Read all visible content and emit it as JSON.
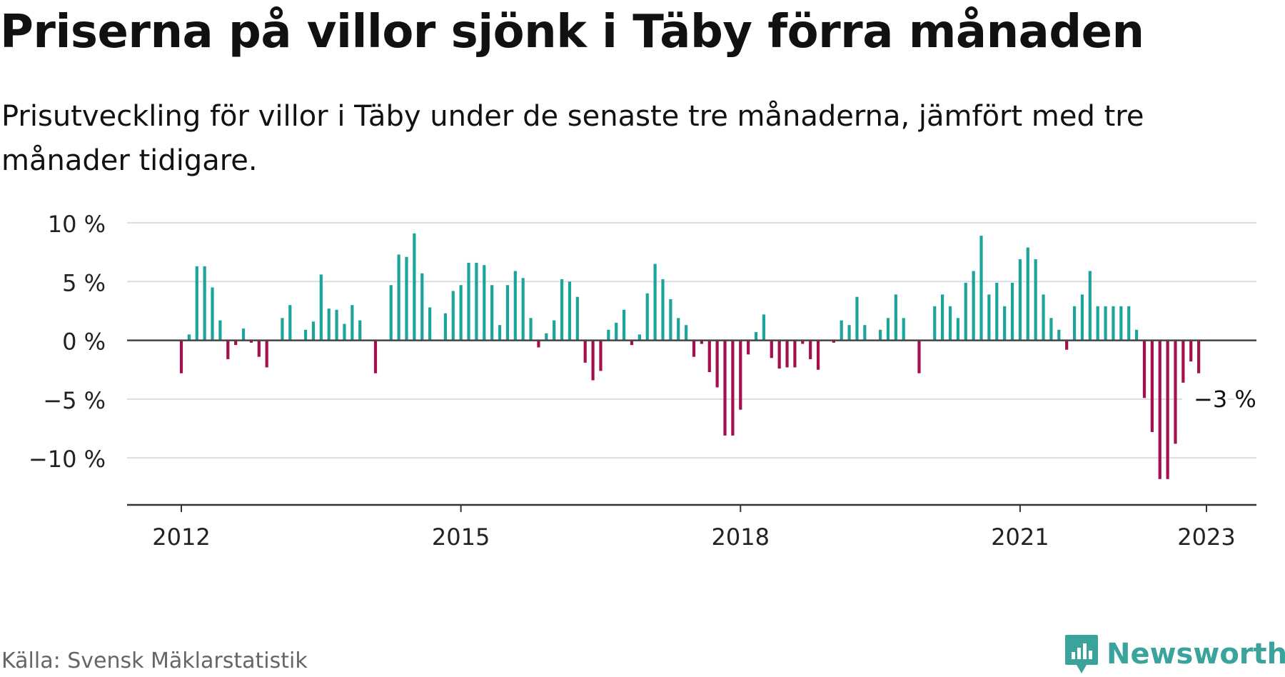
{
  "title": "Priserna på villor sjönk i Täby förra månaden",
  "subtitle": "Prisutveckling för villor i Täby under de senaste tre månaderna, jämfört med tre månader tidigare.",
  "source": "Källa: Svensk Mäklarstatistik",
  "brand": {
    "name": "Newsworthy",
    "icon": "newsworthy-logo-icon",
    "color": "#3aa39b"
  },
  "colors": {
    "positive": "#1aa49a",
    "negative": "#a50f4e",
    "gridline": "#dddddd",
    "axis": "#444444"
  },
  "chart_data": {
    "type": "bar",
    "title": "Priserna på villor sjönk i Täby förra månaden",
    "xlabel": "",
    "ylabel": "",
    "unit": "%",
    "ylim": [
      -14,
      10
    ],
    "yticks": [
      10,
      5,
      0,
      -5,
      -10
    ],
    "ytick_labels": [
      "10 %",
      "5 %",
      "0 %",
      "−5 %",
      "−10 %"
    ],
    "xtick_labels": [
      "2012",
      "2015",
      "2018",
      "2021",
      "2023"
    ],
    "grid": true,
    "legend": "none",
    "annotation": {
      "text": "−3 %",
      "month": "2023-01"
    },
    "series": [
      {
        "values": [
          {
            "x": "2012-01",
            "y": -2.8
          },
          {
            "x": "2012-02",
            "y": 0.5
          },
          {
            "x": "2012-03",
            "y": 6.3
          },
          {
            "x": "2012-04",
            "y": 6.3
          },
          {
            "x": "2012-05",
            "y": 4.5
          },
          {
            "x": "2012-06",
            "y": 1.7
          },
          {
            "x": "2012-07",
            "y": -1.6
          },
          {
            "x": "2012-08",
            "y": -0.4
          },
          {
            "x": "2012-09",
            "y": 1.0
          },
          {
            "x": "2012-10",
            "y": -0.2
          },
          {
            "x": "2012-11",
            "y": -1.4
          },
          {
            "x": "2012-12",
            "y": -2.3
          },
          {
            "x": "2013-01",
            "y": 0.0
          },
          {
            "x": "2013-02",
            "y": 1.9
          },
          {
            "x": "2013-03",
            "y": 3.0
          },
          {
            "x": "2013-04",
            "y": 0.0
          },
          {
            "x": "2013-05",
            "y": 0.9
          },
          {
            "x": "2013-06",
            "y": 1.6
          },
          {
            "x": "2013-07",
            "y": 5.6
          },
          {
            "x": "2013-08",
            "y": 2.7
          },
          {
            "x": "2013-09",
            "y": 2.6
          },
          {
            "x": "2013-10",
            "y": 1.4
          },
          {
            "x": "2013-11",
            "y": 3.0
          },
          {
            "x": "2013-12",
            "y": 1.7
          },
          {
            "x": "2014-01",
            "y": 0.0
          },
          {
            "x": "2014-02",
            "y": -2.8
          },
          {
            "x": "2014-03",
            "y": 0.0
          },
          {
            "x": "2014-04",
            "y": 4.7
          },
          {
            "x": "2014-05",
            "y": 7.3
          },
          {
            "x": "2014-06",
            "y": 7.1
          },
          {
            "x": "2014-07",
            "y": 9.1
          },
          {
            "x": "2014-08",
            "y": 5.7
          },
          {
            "x": "2014-09",
            "y": 2.8
          },
          {
            "x": "2014-10",
            "y": 0.0
          },
          {
            "x": "2014-11",
            "y": 2.3
          },
          {
            "x": "2014-12",
            "y": 4.2
          },
          {
            "x": "2015-01",
            "y": 4.7
          },
          {
            "x": "2015-02",
            "y": 6.6
          },
          {
            "x": "2015-03",
            "y": 6.6
          },
          {
            "x": "2015-04",
            "y": 6.4
          },
          {
            "x": "2015-05",
            "y": 4.7
          },
          {
            "x": "2015-06",
            "y": 1.3
          },
          {
            "x": "2015-07",
            "y": 4.7
          },
          {
            "x": "2015-08",
            "y": 5.9
          },
          {
            "x": "2015-09",
            "y": 5.3
          },
          {
            "x": "2015-10",
            "y": 1.9
          },
          {
            "x": "2015-11",
            "y": -0.6
          },
          {
            "x": "2015-12",
            "y": 0.6
          },
          {
            "x": "2016-01",
            "y": 1.7
          },
          {
            "x": "2016-02",
            "y": 5.2
          },
          {
            "x": "2016-03",
            "y": 5.0
          },
          {
            "x": "2016-04",
            "y": 3.7
          },
          {
            "x": "2016-05",
            "y": -1.9
          },
          {
            "x": "2016-06",
            "y": -3.4
          },
          {
            "x": "2016-07",
            "y": -2.6
          },
          {
            "x": "2016-08",
            "y": 0.9
          },
          {
            "x": "2016-09",
            "y": 1.5
          },
          {
            "x": "2016-10",
            "y": 2.6
          },
          {
            "x": "2016-11",
            "y": -0.4
          },
          {
            "x": "2016-12",
            "y": 0.5
          },
          {
            "x": "2017-01",
            "y": 4.0
          },
          {
            "x": "2017-02",
            "y": 6.5
          },
          {
            "x": "2017-03",
            "y": 5.2
          },
          {
            "x": "2017-04",
            "y": 3.5
          },
          {
            "x": "2017-05",
            "y": 1.9
          },
          {
            "x": "2017-06",
            "y": 1.3
          },
          {
            "x": "2017-07",
            "y": -1.4
          },
          {
            "x": "2017-08",
            "y": -0.3
          },
          {
            "x": "2017-09",
            "y": -2.7
          },
          {
            "x": "2017-10",
            "y": -4.0
          },
          {
            "x": "2017-11",
            "y": -8.1
          },
          {
            "x": "2017-12",
            "y": -8.1
          },
          {
            "x": "2018-01",
            "y": -5.9
          },
          {
            "x": "2018-02",
            "y": -1.2
          },
          {
            "x": "2018-03",
            "y": 0.7
          },
          {
            "x": "2018-04",
            "y": 2.2
          },
          {
            "x": "2018-05",
            "y": -1.5
          },
          {
            "x": "2018-06",
            "y": -2.4
          },
          {
            "x": "2018-07",
            "y": -2.3
          },
          {
            "x": "2018-08",
            "y": -2.3
          },
          {
            "x": "2018-09",
            "y": -0.3
          },
          {
            "x": "2018-10",
            "y": -1.6
          },
          {
            "x": "2018-11",
            "y": -2.5
          },
          {
            "x": "2018-12",
            "y": 0.0
          },
          {
            "x": "2019-01",
            "y": -0.2
          },
          {
            "x": "2019-02",
            "y": 1.7
          },
          {
            "x": "2019-03",
            "y": 1.3
          },
          {
            "x": "2019-04",
            "y": 3.7
          },
          {
            "x": "2019-05",
            "y": 1.3
          },
          {
            "x": "2019-06",
            "y": 0.0
          },
          {
            "x": "2019-07",
            "y": 0.9
          },
          {
            "x": "2019-08",
            "y": 1.9
          },
          {
            "x": "2019-09",
            "y": 3.9
          },
          {
            "x": "2019-10",
            "y": 1.9
          },
          {
            "x": "2019-11",
            "y": 0.0
          },
          {
            "x": "2019-12",
            "y": -2.8
          },
          {
            "x": "2020-01",
            "y": 0.0
          },
          {
            "x": "2020-02",
            "y": 2.9
          },
          {
            "x": "2020-03",
            "y": 3.9
          },
          {
            "x": "2020-04",
            "y": 2.9
          },
          {
            "x": "2020-05",
            "y": 1.9
          },
          {
            "x": "2020-06",
            "y": 4.9
          },
          {
            "x": "2020-07",
            "y": 5.9
          },
          {
            "x": "2020-08",
            "y": 8.9
          },
          {
            "x": "2020-09",
            "y": 3.9
          },
          {
            "x": "2020-10",
            "y": 4.9
          },
          {
            "x": "2020-11",
            "y": 2.9
          },
          {
            "x": "2020-12",
            "y": 4.9
          },
          {
            "x": "2021-01",
            "y": 6.9
          },
          {
            "x": "2021-02",
            "y": 7.9
          },
          {
            "x": "2021-03",
            "y": 6.9
          },
          {
            "x": "2021-04",
            "y": 3.9
          },
          {
            "x": "2021-05",
            "y": 1.9
          },
          {
            "x": "2021-06",
            "y": 0.9
          },
          {
            "x": "2021-07",
            "y": -0.8
          },
          {
            "x": "2021-08",
            "y": 2.9
          },
          {
            "x": "2021-09",
            "y": 3.9
          },
          {
            "x": "2021-10",
            "y": 5.9
          },
          {
            "x": "2021-11",
            "y": 2.9
          },
          {
            "x": "2021-12",
            "y": 2.9
          },
          {
            "x": "2022-01",
            "y": 2.9
          },
          {
            "x": "2022-02",
            "y": 2.9
          },
          {
            "x": "2022-03",
            "y": 2.9
          },
          {
            "x": "2022-04",
            "y": 0.9
          },
          {
            "x": "2022-05",
            "y": -4.9
          },
          {
            "x": "2022-06",
            "y": -7.8
          },
          {
            "x": "2022-07",
            "y": -11.8
          },
          {
            "x": "2022-08",
            "y": -11.8
          },
          {
            "x": "2022-09",
            "y": -8.8
          },
          {
            "x": "2022-10",
            "y": -3.6
          },
          {
            "x": "2022-11",
            "y": -1.8
          },
          {
            "x": "2022-12",
            "y": -2.8
          }
        ]
      }
    ]
  }
}
